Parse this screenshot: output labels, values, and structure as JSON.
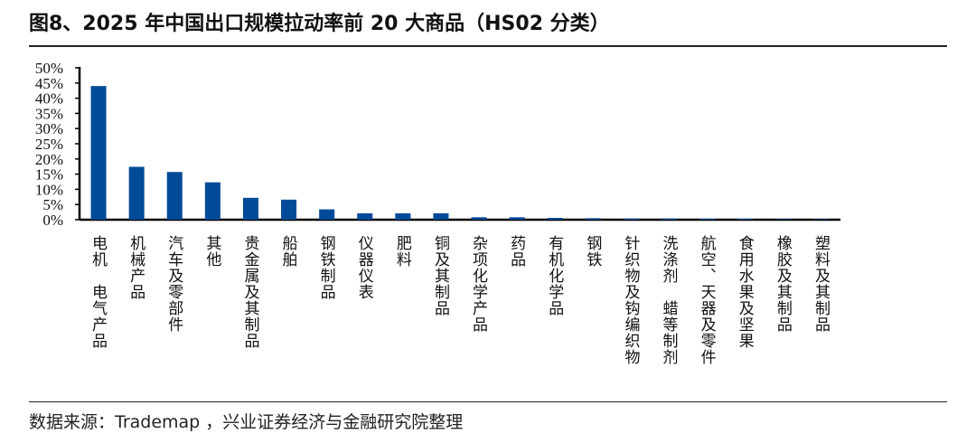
{
  "title": "图8、2025 年中国出口规模拉动率前 20 大商品（HS02 分类）",
  "source": "数据来源：Trademap ，兴业证券经济与金融研究院整理",
  "chart_data": {
    "type": "bar",
    "title": "",
    "xlabel": "",
    "ylabel": "",
    "ylim": [
      0,
      50
    ],
    "yticks": [
      "0%",
      "5%",
      "10%",
      "15%",
      "20%",
      "25%",
      "30%",
      "35%",
      "40%",
      "45%",
      "50%"
    ],
    "grid": false,
    "bar_color": "#004a98",
    "categories": [
      "电机　电气产品",
      "机械产品",
      "汽车及零部件",
      "其他",
      "贵金属及其制品",
      "船舶",
      "钢铁制品",
      "仪器仪表",
      "肥料",
      "铜及其制品",
      "杂项化学产品",
      "药品",
      "有机化学品",
      "钢铁",
      "针织物及钩编织物",
      "洗涤剂　蜡等制剂",
      "航空、天器及零件",
      "食用水果及坚果",
      "橡胶及其制品",
      "塑料及其制品"
    ],
    "values": [
      44.0,
      17.4,
      15.7,
      12.3,
      7.2,
      6.6,
      3.4,
      2.1,
      2.1,
      2.1,
      0.8,
      0.8,
      0.6,
      0.5,
      0.4,
      0.4,
      0.3,
      0.3,
      0.2,
      0.2
    ]
  }
}
